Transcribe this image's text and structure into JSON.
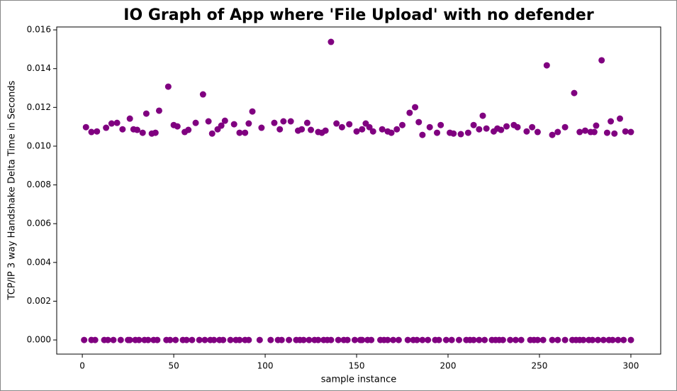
{
  "chart_data": {
    "type": "scatter",
    "title": "IO Graph of App where 'File Upload' with no defender",
    "xlabel": "sample instance",
    "ylabel": "TCP/IP 3 way Handshake Delta Time in Seconds",
    "xlim": [
      -14,
      316.3
    ],
    "ylim": [
      -0.00073,
      0.01615
    ],
    "xticks": [
      0,
      50,
      100,
      150,
      200,
      250,
      300
    ],
    "yticks": [
      {
        "value": 0,
        "label": "0.000"
      },
      {
        "value": 0.002,
        "label": "0.002"
      },
      {
        "value": 0.004,
        "label": "0.004"
      },
      {
        "value": 0.006,
        "label": "0.006"
      },
      {
        "value": 0.008,
        "label": "0.008"
      },
      {
        "value": 0.01,
        "label": "0.010"
      },
      {
        "value": 0.012,
        "label": "0.012"
      },
      {
        "value": 0.014,
        "label": "0.014"
      },
      {
        "value": 0.016,
        "label": "0.016"
      }
    ],
    "series": [
      {
        "color": "#800080",
        "x": [
          2,
          5,
          8,
          13,
          16,
          19,
          22,
          26,
          28,
          30,
          33,
          35,
          38,
          40,
          42,
          47,
          50,
          52,
          56,
          58,
          62,
          66,
          69,
          71,
          74,
          76,
          78,
          83,
          86,
          89,
          91,
          93,
          98,
          105,
          108,
          110,
          114,
          118,
          120,
          123,
          125,
          129,
          131,
          133,
          136,
          139,
          142,
          146,
          150,
          153,
          155,
          157,
          159,
          164,
          167,
          169,
          172,
          175,
          179,
          182,
          184,
          186,
          190,
          194,
          196,
          201,
          203,
          207,
          211,
          214,
          217,
          219,
          221,
          225,
          227,
          229,
          232,
          236,
          238,
          243,
          246,
          249,
          254,
          257,
          260,
          264,
          269,
          272,
          275,
          278,
          280,
          281,
          284,
          287,
          289,
          291,
          294,
          297,
          300,
          1,
          5,
          7,
          12,
          14,
          17,
          21,
          25,
          26,
          29,
          31,
          34,
          36,
          39,
          41,
          46,
          48,
          51,
          55,
          57,
          60,
          64,
          67,
          70,
          72,
          75,
          77,
          81,
          84,
          86,
          89,
          91,
          97,
          103,
          107,
          109,
          113,
          117,
          119,
          121,
          124,
          127,
          129,
          132,
          134,
          136,
          140,
          143,
          145,
          149,
          152,
          153,
          156,
          158,
          163,
          165,
          167,
          170,
          173,
          178,
          181,
          183,
          186,
          189,
          193,
          195,
          199,
          202,
          206,
          210,
          212,
          214,
          217,
          220,
          224,
          226,
          228,
          230,
          234,
          237,
          240,
          245,
          247,
          249,
          252,
          257,
          260,
          264,
          268,
          270,
          272,
          274,
          277,
          279,
          282,
          285,
          288,
          290,
          293,
          296,
          300
        ],
        "values": [
          0.01098,
          0.01073,
          0.01076,
          0.01095,
          0.01117,
          0.0112,
          0.01087,
          0.01142,
          0.01087,
          0.01084,
          0.01069,
          0.01168,
          0.01065,
          0.01069,
          0.01183,
          0.01307,
          0.01109,
          0.01102,
          0.01073,
          0.01084,
          0.0112,
          0.01267,
          0.01128,
          0.01065,
          0.01087,
          0.01106,
          0.01131,
          0.01113,
          0.01069,
          0.01069,
          0.01117,
          0.01179,
          0.01095,
          0.0112,
          0.01087,
          0.01128,
          0.01128,
          0.0108,
          0.01087,
          0.0112,
          0.01084,
          0.01073,
          0.01069,
          0.0108,
          0.01538,
          0.01117,
          0.01098,
          0.01113,
          0.01076,
          0.01087,
          0.01117,
          0.01098,
          0.01076,
          0.01087,
          0.01076,
          0.01069,
          0.01087,
          0.01109,
          0.01172,
          0.01201,
          0.01124,
          0.01058,
          0.01098,
          0.01069,
          0.01109,
          0.01069,
          0.01065,
          0.01062,
          0.01069,
          0.01109,
          0.01087,
          0.01157,
          0.01091,
          0.01076,
          0.01091,
          0.01084,
          0.01102,
          0.01109,
          0.01098,
          0.01076,
          0.01098,
          0.01073,
          0.01417,
          0.01058,
          0.01073,
          0.01098,
          0.01274,
          0.01073,
          0.0108,
          0.01073,
          0.01073,
          0.01106,
          0.01443,
          0.01069,
          0.01128,
          0.01065,
          0.01142,
          0.01076,
          0.01073,
          0,
          0,
          0,
          0,
          0,
          0,
          0,
          0,
          0,
          0,
          0,
          0,
          0,
          0,
          0,
          0,
          0,
          0,
          0,
          0,
          0,
          0,
          0,
          0,
          0,
          0,
          0,
          0,
          0,
          0,
          0,
          0,
          0,
          0,
          0,
          0,
          0,
          0,
          0,
          0,
          0,
          0,
          0,
          0,
          0,
          0,
          0,
          0,
          0,
          0,
          0,
          0,
          0,
          0,
          0,
          0,
          0,
          0,
          0,
          0,
          0,
          0,
          0,
          0,
          0,
          0,
          0,
          0,
          0,
          0,
          0,
          0,
          0,
          0,
          0,
          0,
          0,
          0,
          0,
          0,
          0,
          0,
          0,
          0,
          0,
          0,
          0,
          0,
          0,
          0,
          0,
          0,
          0,
          0,
          0,
          0,
          0,
          0,
          0,
          0,
          0
        ]
      }
    ]
  }
}
